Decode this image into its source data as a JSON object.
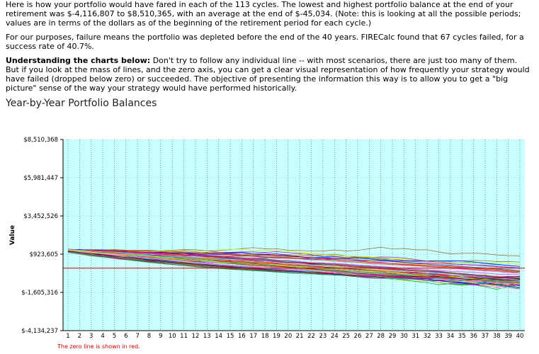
{
  "text": {
    "p1": "Here is how your portfolio would have fared in each of the 113 cycles. The lowest and highest portfolio balance at the end of your retirement was $-4,116,807 to $8,510,365, with an average at the end of $-45,034. (Note: this is looking at all the possible periods; values are in terms of the dollars as of the beginning of the retirement period for each cycle.)",
    "p2": "For our purposes, failure means the portfolio was depleted before the end of the 40 years. FIRECalc found that 67 cycles failed, for a success rate of 40.7%.",
    "p3_bold": "Understanding the charts below:",
    "p3_rest": " Don't try to follow any individual line -- with most scenarios, there are just too many of them. But if you look at the mass of lines, and the zero axis, you can get a clear visual representation of how frequently your strategy would have failed (dropped below zero) or succeeded. The objective of presenting the information this way is to allow you to get a \"big picture\" sense of the way your strategy would have performed historically."
  },
  "chart_data": {
    "type": "line",
    "title": "Year-by-Year Portfolio Balances",
    "ylabel": "Value",
    "xlabel": "",
    "x": [
      1,
      2,
      3,
      4,
      5,
      6,
      7,
      8,
      9,
      10,
      11,
      12,
      13,
      14,
      15,
      16,
      17,
      18,
      19,
      20,
      21,
      22,
      23,
      24,
      25,
      26,
      27,
      28,
      29,
      30,
      31,
      32,
      33,
      34,
      35,
      36,
      37,
      38,
      39,
      40
    ],
    "yticks": [
      "$-4,134,237",
      "$-1,605,316",
      "$923,605",
      "$3,452,526",
      "$5,981,447",
      "$8,510,368"
    ],
    "ytick_values": [
      -4134237,
      -1605316,
      923605,
      3452526,
      5981447,
      8510368
    ],
    "ylim": [
      -4134237,
      8510368
    ],
    "zero_line": 0,
    "zero_line_color": "#e00000",
    "plot_background": "#c8ffff",
    "grid": "vertical dotted",
    "num_cycles": 113,
    "start_value": 1200000,
    "series_description": "113 cycles; end values range from -4,116,807 to 8,510,365, average -45,034",
    "footnote": "The zero line is shown in red."
  }
}
